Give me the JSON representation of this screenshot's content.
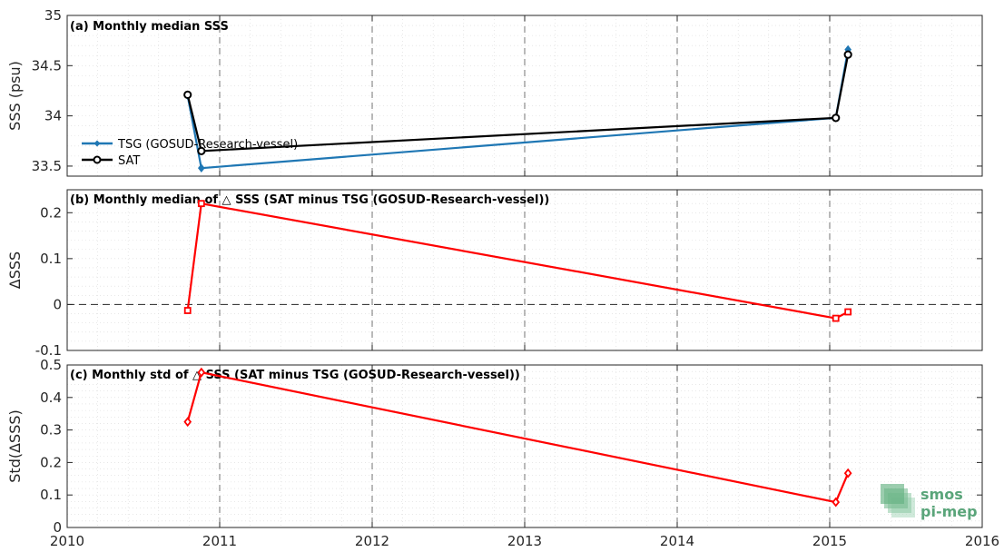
{
  "chart_data": [
    {
      "type": "line",
      "title": "(a) Monthly median SSS",
      "ylabel": "SSS (psu)",
      "xlim": [
        2010,
        2016
      ],
      "ylim": [
        33.4,
        35
      ],
      "yticks": [
        33.5,
        34,
        34.5,
        35
      ],
      "ytick_labels": [
        "33.5",
        "34",
        "34.5",
        "35"
      ],
      "legend_position": "lower-left",
      "series": [
        {
          "name": "TSG (GOSUD-Research-vessel)",
          "color": "#1f77b4",
          "marker": "diamond",
          "x": [
            2010.79,
            2010.88,
            2015.04,
            2015.12
          ],
          "y": [
            34.2,
            33.48,
            33.98,
            34.66
          ]
        },
        {
          "name": "SAT",
          "color": "#000000",
          "marker": "circle",
          "x": [
            2010.79,
            2010.88,
            2015.04,
            2015.12
          ],
          "y": [
            34.21,
            33.65,
            33.98,
            34.61
          ]
        }
      ]
    },
    {
      "type": "line",
      "title": "(b) Monthly median of △ SSS (SAT minus TSG (GOSUD-Research-vessel))",
      "ylabel": "ΔSSS",
      "xlim": [
        2010,
        2016
      ],
      "ylim": [
        -0.1,
        0.25
      ],
      "yticks": [
        -0.1,
        0,
        0.1,
        0.2
      ],
      "ytick_labels": [
        "-0.1",
        "0",
        "0.1",
        "0.2"
      ],
      "zero_line": true,
      "series": [
        {
          "color": "#ff0000",
          "marker": "square",
          "x": [
            2010.79,
            2010.88,
            2015.04,
            2015.12
          ],
          "y": [
            -0.013,
            0.22,
            -0.03,
            -0.016
          ]
        }
      ]
    },
    {
      "type": "line",
      "title": "(c) Monthly std of △ SSS (SAT minus TSG (GOSUD-Research-vessel))",
      "ylabel": "Std(ΔSSS)",
      "xlim": [
        2010,
        2016
      ],
      "ylim": [
        0,
        0.5
      ],
      "yticks": [
        0,
        0.1,
        0.2,
        0.3,
        0.4,
        0.5
      ],
      "ytick_labels": [
        "0",
        "0.1",
        "0.2",
        "0.3",
        "0.4",
        "0.5"
      ],
      "xticks": [
        2010,
        2011,
        2012,
        2013,
        2014,
        2015,
        2016
      ],
      "xtick_labels": [
        "2010",
        "2011",
        "2012",
        "2013",
        "2014",
        "2015",
        "2016"
      ],
      "series": [
        {
          "color": "#ff0000",
          "marker": "diamond",
          "x": [
            2010.79,
            2010.88,
            2015.04,
            2015.12
          ],
          "y": [
            0.325,
            0.477,
            0.078,
            0.167
          ]
        }
      ]
    }
  ],
  "logo": {
    "line1": "smos",
    "line2": "pi-mep",
    "color": "#5aa57a"
  },
  "grid": true,
  "minor_grid": true
}
